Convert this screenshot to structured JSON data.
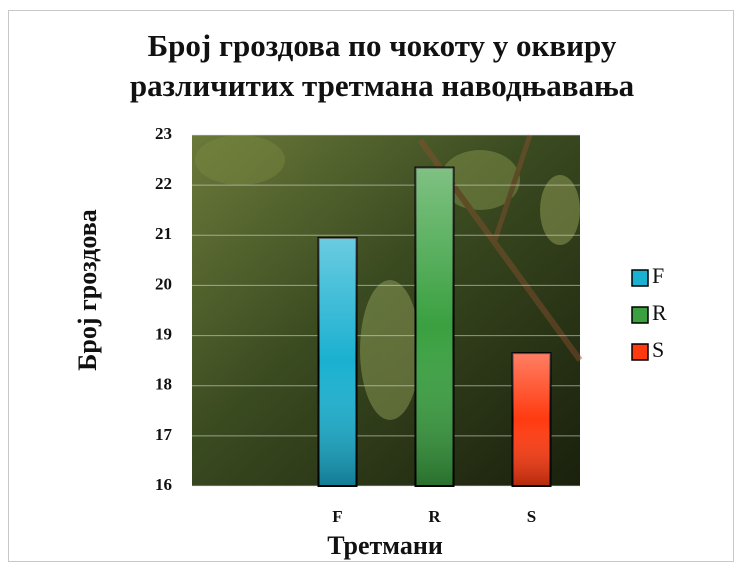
{
  "chart_data": {
    "type": "bar",
    "title": "Број гроздова по чокоту у оквиру различитих третмана наводњавања",
    "x_label": "Третмани",
    "y_label": "Број гроздова",
    "categories": [
      "F",
      "R",
      "S"
    ],
    "series": [
      {
        "name": "F",
        "color": "#1ab0d0",
        "values": [
          20.95,
          null,
          null
        ]
      },
      {
        "name": "R",
        "color": "#3aa040",
        "values": [
          null,
          22.35,
          null
        ]
      },
      {
        "name": "S",
        "color": "#ff3a10",
        "values": [
          null,
          null,
          18.65
        ]
      }
    ],
    "ylim": [
      16,
      23
    ],
    "yticks": [
      16,
      17,
      18,
      19,
      20,
      21,
      22,
      23
    ],
    "grid": true,
    "legend": "right"
  }
}
